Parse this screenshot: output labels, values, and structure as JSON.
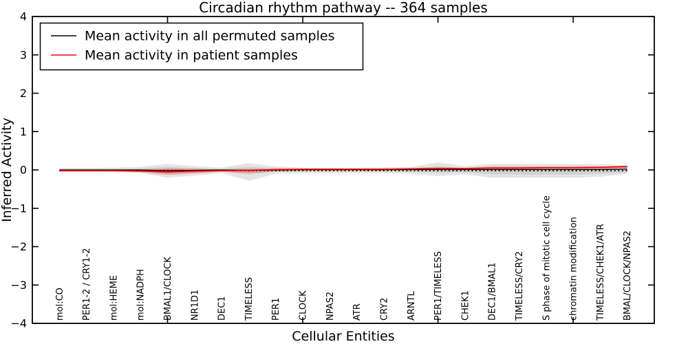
{
  "chart_data": {
    "type": "line",
    "title": "Circadian rhythm pathway -- 364 samples",
    "xlabel": "Cellular Entities",
    "ylabel": "Inferred Activity",
    "ylim": [
      -4,
      4
    ],
    "xlim": [
      0,
      23
    ],
    "grid": false,
    "legend_position": "upper left",
    "yticks": [
      -4,
      -3,
      -2,
      -1,
      0,
      1,
      2,
      3,
      4
    ],
    "ytick_labels": [
      "−4",
      "−3",
      "−2",
      "−1",
      "0",
      "1",
      "2",
      "3",
      "4"
    ],
    "x_major_ticks": [
      5,
      10,
      15,
      20
    ],
    "categories": [
      "mol:CO",
      "PER1-2 / CRY1-2",
      "mol:HEME",
      "mol:NADPH",
      "BMAL1/CLOCK",
      "NR1D1",
      "DEC1",
      "TIMELESS",
      "PER1",
      "CLOCK",
      "NPAS2",
      "ATR",
      "CRY2",
      "ARNTL",
      "PER1/TIMELESS",
      "CHEK1",
      "DEC1/BMAL1",
      "TIMELESS/CRY2",
      "S phase of mitotic cell cycle",
      "chromatin modification",
      "TIMELESS/CHEK1/ATR",
      "BMAL/CLOCK/NPAS2"
    ],
    "series": [
      {
        "name": "Mean activity in all permuted samples",
        "color": "#000000",
        "values": [
          0.0,
          0.0,
          0.0,
          0.0,
          -0.02,
          -0.01,
          0.0,
          -0.01,
          0.0,
          0.01,
          0.01,
          0.01,
          0.01,
          0.01,
          0.01,
          0.01,
          0.01,
          0.01,
          0.01,
          0.01,
          0.01,
          0.02
        ]
      },
      {
        "name": "Mean activity in patient samples",
        "color": "#ff0000",
        "values": [
          -0.02,
          -0.02,
          -0.02,
          -0.03,
          -0.05,
          -0.03,
          -0.02,
          -0.01,
          0.01,
          0.02,
          0.02,
          0.02,
          0.02,
          0.03,
          0.04,
          0.04,
          0.05,
          0.05,
          0.06,
          0.06,
          0.07,
          0.09
        ]
      }
    ],
    "bands": [
      {
        "name": "permuted-band-outer",
        "color": "rgba(135,135,135,0.22)",
        "upper": [
          0.05,
          0.05,
          0.06,
          0.08,
          0.16,
          0.1,
          0.06,
          0.18,
          0.09,
          0.06,
          0.06,
          0.06,
          0.07,
          0.08,
          0.2,
          0.1,
          0.16,
          0.16,
          0.16,
          0.16,
          0.15,
          0.12
        ],
        "lower": [
          -0.05,
          -0.05,
          -0.06,
          -0.08,
          -0.2,
          -0.15,
          -0.08,
          -0.28,
          -0.1,
          -0.08,
          -0.08,
          -0.08,
          -0.08,
          -0.1,
          -0.16,
          -0.12,
          -0.2,
          -0.2,
          -0.2,
          -0.2,
          -0.18,
          -0.1
        ]
      },
      {
        "name": "permuted-band-inner",
        "color": "rgba(135,135,135,0.22)",
        "upper": [
          0.03,
          0.03,
          0.03,
          0.04,
          0.08,
          0.05,
          0.03,
          0.08,
          0.05,
          0.03,
          0.03,
          0.03,
          0.04,
          0.04,
          0.1,
          0.05,
          0.1,
          0.1,
          0.1,
          0.1,
          0.09,
          0.08
        ],
        "lower": [
          -0.03,
          -0.03,
          -0.03,
          -0.04,
          -0.1,
          -0.08,
          -0.04,
          -0.12,
          -0.05,
          -0.04,
          -0.04,
          -0.04,
          -0.04,
          -0.05,
          -0.08,
          -0.06,
          -0.12,
          -0.12,
          -0.12,
          -0.12,
          -0.1,
          -0.06
        ]
      },
      {
        "name": "patient-band-outer",
        "color": "rgba(255,0,0,0.22)",
        "upper": [
          0.0,
          0.0,
          0.0,
          0.01,
          0.04,
          0.03,
          0.01,
          0.03,
          0.03,
          0.03,
          0.03,
          0.03,
          0.03,
          0.04,
          0.07,
          0.05,
          0.08,
          0.08,
          0.08,
          0.08,
          0.08,
          0.11
        ],
        "lower": [
          -0.04,
          -0.04,
          -0.04,
          -0.06,
          -0.13,
          -0.09,
          -0.05,
          -0.08,
          -0.04,
          -0.02,
          -0.02,
          -0.02,
          -0.02,
          -0.01,
          0.0,
          0.0,
          0.02,
          0.02,
          0.03,
          0.03,
          0.03,
          0.05
        ]
      },
      {
        "name": "patient-band-inner",
        "color": "rgba(255,0,0,0.25)",
        "upper": [
          0.0,
          0.0,
          0.0,
          0.0,
          0.02,
          0.01,
          0.0,
          0.01,
          0.02,
          0.02,
          0.02,
          0.02,
          0.02,
          0.03,
          0.05,
          0.04,
          0.06,
          0.06,
          0.07,
          0.07,
          0.07,
          0.1
        ],
        "lower": [
          -0.03,
          -0.03,
          -0.03,
          -0.04,
          -0.08,
          -0.06,
          -0.03,
          -0.04,
          -0.02,
          -0.01,
          -0.01,
          -0.01,
          -0.01,
          0.0,
          0.01,
          0.01,
          0.03,
          0.03,
          0.04,
          0.04,
          0.04,
          0.06
        ]
      }
    ],
    "zero_line": {
      "y": 0,
      "style": "dotted",
      "color": "#000000"
    }
  },
  "legend": {
    "entries": [
      {
        "label": "Mean activity in all permuted samples",
        "color": "#000000"
      },
      {
        "label": "Mean activity in patient samples",
        "color": "#ff0000"
      }
    ]
  }
}
